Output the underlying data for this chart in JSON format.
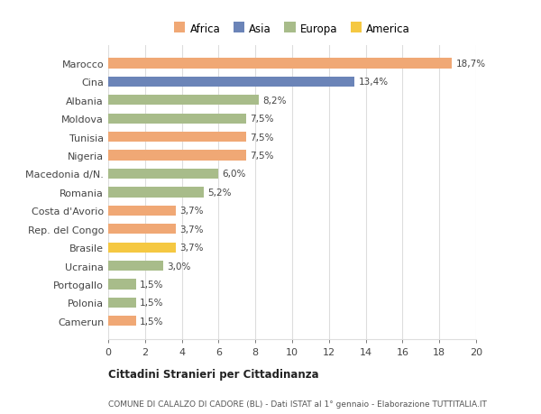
{
  "countries": [
    "Marocco",
    "Cina",
    "Albania",
    "Moldova",
    "Tunisia",
    "Nigeria",
    "Macedonia d/N.",
    "Romania",
    "Costa d'Avorio",
    "Rep. del Congo",
    "Brasile",
    "Ucraina",
    "Portogallo",
    "Polonia",
    "Camerun"
  ],
  "values": [
    18.7,
    13.4,
    8.2,
    7.5,
    7.5,
    7.5,
    6.0,
    5.2,
    3.7,
    3.7,
    3.7,
    3.0,
    1.5,
    1.5,
    1.5
  ],
  "labels": [
    "18,7%",
    "13,4%",
    "8,2%",
    "7,5%",
    "7,5%",
    "7,5%",
    "6,0%",
    "5,2%",
    "3,7%",
    "3,7%",
    "3,7%",
    "3,0%",
    "1,5%",
    "1,5%",
    "1,5%"
  ],
  "colors": [
    "#F0A875",
    "#6B84B8",
    "#A8BC8A",
    "#A8BC8A",
    "#F0A875",
    "#F0A875",
    "#A8BC8A",
    "#A8BC8A",
    "#F0A875",
    "#F0A875",
    "#F5C842",
    "#A8BC8A",
    "#A8BC8A",
    "#A8BC8A",
    "#F0A875"
  ],
  "legend": [
    {
      "label": "Africa",
      "color": "#F0A875"
    },
    {
      "label": "Asia",
      "color": "#6B84B8"
    },
    {
      "label": "Europa",
      "color": "#A8BC8A"
    },
    {
      "label": "America",
      "color": "#F5C842"
    }
  ],
  "xlim": [
    0,
    20
  ],
  "xticks": [
    0,
    2,
    4,
    6,
    8,
    10,
    12,
    14,
    16,
    18,
    20
  ],
  "title1": "Cittadini Stranieri per Cittadinanza",
  "title2": "COMUNE DI CALALZO DI CADORE (BL) - Dati ISTAT al 1° gennaio - Elaborazione TUTTITALIA.IT",
  "bg_color": "#ffffff",
  "grid_color": "#dddddd",
  "bar_height": 0.55
}
